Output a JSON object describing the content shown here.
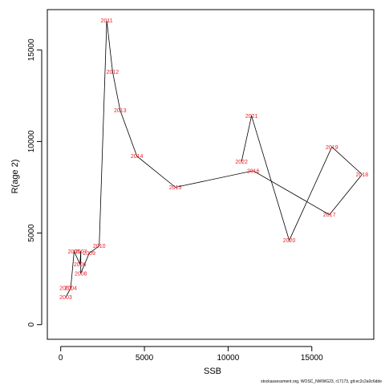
{
  "chart_data": {
    "type": "line",
    "xlabel": "SSB",
    "ylabel": "R(age 2)",
    "xlim": [
      -800,
      18700
    ],
    "ylim": [
      -800,
      17200
    ],
    "xticks": [
      0,
      5000,
      10000,
      15000
    ],
    "yticks": [
      0,
      5000,
      10000,
      15000
    ],
    "line_color": "#000000",
    "label_color": "#e8202a",
    "footer_text": "stockassessment.org, WOSC_NWWG23, r17173, git:ec2c2a0c6dde",
    "series": [
      {
        "points": [
          {
            "year": "2003",
            "x": 300,
            "y": 1500
          },
          {
            "year": "2004",
            "x": 600,
            "y": 2000
          },
          {
            "year": "2005",
            "x": 800,
            "y": 4000
          },
          {
            "year": "2006",
            "x": 1150,
            "y": 3300
          },
          {
            "year": "2007",
            "x": 1200,
            "y": 4000
          },
          {
            "year": "2008",
            "x": 1200,
            "y": 2800
          },
          {
            "year": "2009",
            "x": 1700,
            "y": 3900
          },
          {
            "year": "2010",
            "x": 2300,
            "y": 4300
          },
          {
            "year": "2011",
            "x": 2750,
            "y": 16600
          },
          {
            "year": "2012",
            "x": 3100,
            "y": 13800
          },
          {
            "year": "2013",
            "x": 3550,
            "y": 11700
          },
          {
            "year": "2014",
            "x": 4550,
            "y": 9200
          },
          {
            "year": "2015",
            "x": 6850,
            "y": 7500
          },
          {
            "year": "2016",
            "x": 11500,
            "y": 8400
          },
          {
            "year": "2017",
            "x": 16050,
            "y": 6000
          },
          {
            "year": "2018",
            "x": 18000,
            "y": 8200
          },
          {
            "year": "2019",
            "x": 16200,
            "y": 9700
          },
          {
            "year": "2020",
            "x": 13650,
            "y": 4600
          },
          {
            "year": "2021",
            "x": 11400,
            "y": 11400
          },
          {
            "year": "2022",
            "x": 10800,
            "y": 8900
          }
        ],
        "extra_labels": [
          {
            "year": "2002",
            "x": 300,
            "y": 2000
          }
        ]
      }
    ]
  }
}
